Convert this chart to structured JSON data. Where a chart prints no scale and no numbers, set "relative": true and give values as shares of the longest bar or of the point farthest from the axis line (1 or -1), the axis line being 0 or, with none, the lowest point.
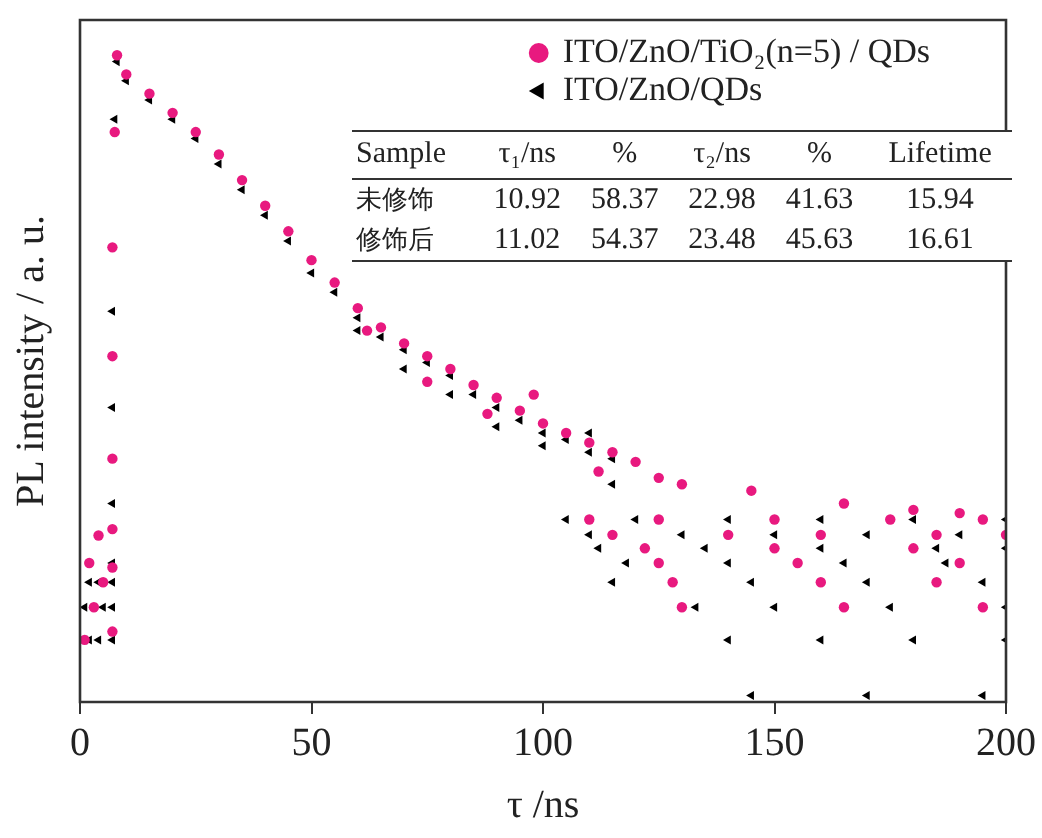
{
  "chart_data": {
    "type": "scatter",
    "xlabel": "τ /ns",
    "ylabel": "PL intensity / a. u.",
    "relative": true,
    "xlim": [
      0,
      200
    ],
    "xticks": [
      0,
      50,
      100,
      150,
      200
    ],
    "legend": "top right",
    "annotations": [
      "Sample\tτ₁/ns\t%\tτ₂/ns\t%\tLifetime",
      "未修饰\t10.92\t58.37\t22.98\t41.63\t15.94",
      "修饰后\t11.02\t54.37\t23.48\t45.63\t16.61"
    ],
    "series": [
      {
        "name": "ITO/ZnO/TiO₂(n=5) / QDs",
        "color": "#e8197f",
        "marker": "circle",
        "x": [
          1,
          3,
          5,
          2,
          4,
          7,
          7,
          7,
          7,
          7,
          7,
          7.5,
          8,
          10,
          15,
          20,
          25,
          30,
          35,
          40,
          45,
          50,
          55,
          60,
          65,
          70,
          75,
          80,
          85,
          90,
          95,
          100,
          105,
          110,
          115,
          120,
          62,
          75,
          88,
          98,
          112,
          125,
          130,
          145,
          165,
          180,
          190,
          110,
          125,
          150,
          175,
          195,
          115,
          140,
          160,
          185,
          200,
          122,
          150,
          180,
          125,
          155,
          190,
          128,
          160,
          185,
          130,
          165,
          195
        ],
        "values": [
          0.087,
          0.138,
          0.177,
          0.207,
          0.25,
          0.1,
          0.2,
          0.26,
          0.37,
          0.53,
          0.7,
          0.88,
          1.0,
          0.97,
          0.94,
          0.91,
          0.88,
          0.845,
          0.805,
          0.765,
          0.725,
          0.68,
          0.645,
          0.605,
          0.575,
          0.55,
          0.53,
          0.51,
          0.485,
          0.465,
          0.445,
          0.425,
          0.41,
          0.395,
          0.38,
          0.365,
          0.57,
          0.49,
          0.44,
          0.47,
          0.35,
          0.34,
          0.33,
          0.32,
          0.3,
          0.29,
          0.285,
          0.275,
          0.275,
          0.275,
          0.275,
          0.275,
          0.251,
          0.251,
          0.251,
          0.251,
          0.251,
          0.23,
          0.23,
          0.23,
          0.207,
          0.207,
          0.207,
          0.177,
          0.177,
          0.177,
          0.138,
          0.138,
          0.138
        ]
      },
      {
        "name": "ITO/ZnO/QDs",
        "color": "#000000",
        "marker": "triangle",
        "x": [
          1,
          2,
          4,
          1,
          3,
          5,
          2,
          4,
          7,
          7,
          7,
          7,
          7,
          7,
          7,
          7.5,
          8,
          10,
          15,
          20,
          25,
          30,
          35,
          40,
          45,
          50,
          55,
          60,
          65,
          70,
          75,
          80,
          85,
          90,
          95,
          100,
          105,
          110,
          115,
          60,
          70,
          80,
          90,
          100,
          110,
          115,
          105,
          120,
          140,
          160,
          180,
          200,
          110,
          130,
          150,
          170,
          190,
          112,
          135,
          160,
          185,
          200,
          118,
          140,
          165,
          187,
          115,
          145,
          170,
          195,
          133,
          150,
          175,
          200,
          140,
          160,
          180,
          200,
          145,
          170,
          195
        ],
        "values": [
          0.087,
          0.087,
          0.087,
          0.138,
          0.138,
          0.138,
          0.177,
          0.177,
          0.087,
          0.138,
          0.177,
          0.207,
          0.3,
          0.45,
          0.6,
          0.9,
          0.99,
          0.96,
          0.93,
          0.9,
          0.87,
          0.83,
          0.79,
          0.75,
          0.71,
          0.66,
          0.63,
          0.59,
          0.56,
          0.54,
          0.52,
          0.5,
          0.47,
          0.45,
          0.43,
          0.41,
          0.4,
          0.38,
          0.37,
          0.57,
          0.51,
          0.47,
          0.42,
          0.39,
          0.41,
          0.33,
          0.275,
          0.275,
          0.275,
          0.275,
          0.275,
          0.275,
          0.251,
          0.251,
          0.251,
          0.251,
          0.251,
          0.23,
          0.23,
          0.23,
          0.23,
          0.23,
          0.207,
          0.207,
          0.207,
          0.207,
          0.177,
          0.177,
          0.177,
          0.177,
          0.138,
          0.138,
          0.138,
          0.138,
          0.087,
          0.087,
          0.087,
          0.087,
          0,
          0,
          0
        ]
      }
    ]
  }
}
